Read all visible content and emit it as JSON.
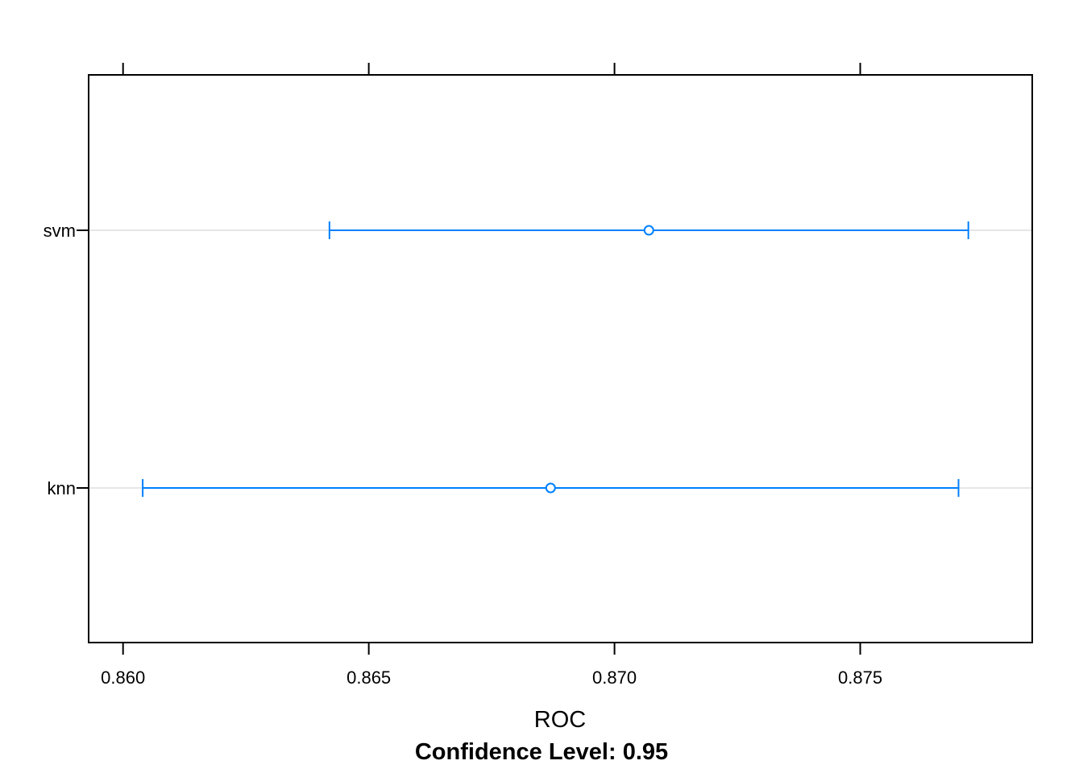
{
  "chart_data": {
    "type": "dotplot-interval",
    "xlabel": "ROC",
    "subtitle": "Confidence Level: 0.95",
    "xlim": [
      0.8593,
      0.8785
    ],
    "x_ticks": [
      0.86,
      0.865,
      0.87,
      0.875
    ],
    "x_tick_labels": [
      "0.860",
      "0.865",
      "0.870",
      "0.875"
    ],
    "categories": [
      "svm",
      "knn"
    ],
    "series": [
      {
        "category": "svm",
        "estimate": 0.8707,
        "lower": 0.8642,
        "upper": 0.8772
      },
      {
        "category": "knn",
        "estimate": 0.8687,
        "lower": 0.8604,
        "upper": 0.877
      }
    ],
    "grid": "horizontal reference lines",
    "colors": {
      "interval": "#0080ff",
      "reference_line": "#e6e6e6",
      "axis": "#000000"
    }
  }
}
